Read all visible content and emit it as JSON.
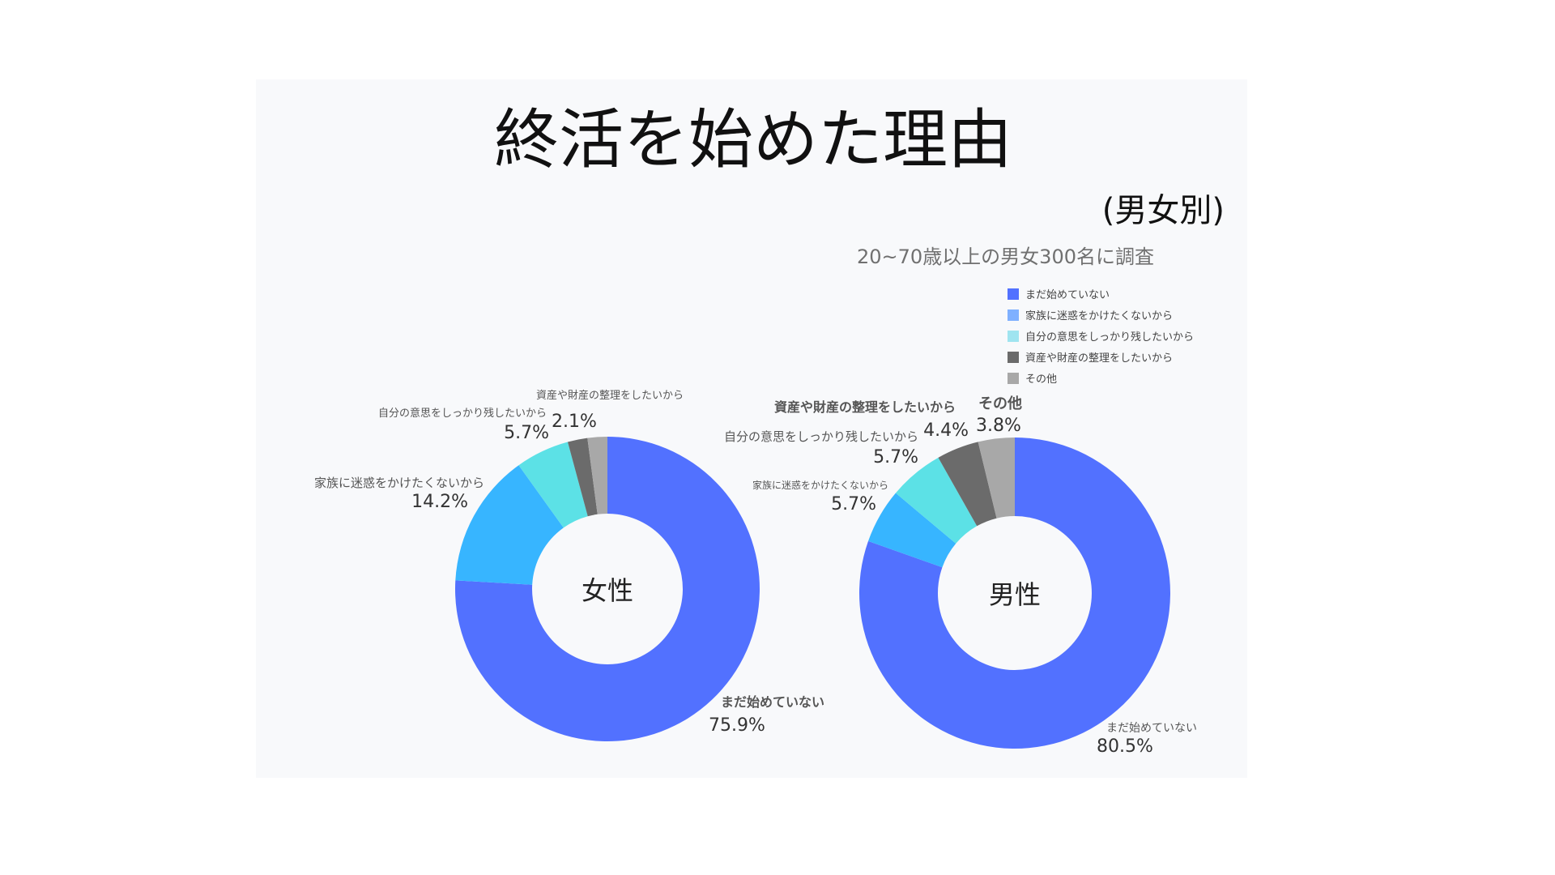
{
  "chart_data": {
    "type": "pie",
    "title": "終活を始めた理由",
    "subtitle": "(男女別)",
    "note": "20~70歳以上の男女300名に調査",
    "legend": {
      "placement": "top-right",
      "items": [
        {
          "label": "まだ始めていない",
          "color": "#5271ff"
        },
        {
          "label": "家族に迷惑をかけたくないから",
          "color": "#7fb0ff"
        },
        {
          "label": "自分の意思をしっかり残したいから",
          "color": "#9fe4f0"
        },
        {
          "label": "資産や財産の整理をしたいから",
          "color": "#6b6b6b"
        },
        {
          "label": "その他",
          "color": "#a8a8a8"
        }
      ]
    },
    "charts": [
      {
        "center_label": "女性",
        "slices": [
          {
            "label": "まだ始めていない",
            "value": 75.9,
            "display": "75.9%",
            "color": "#5271ff"
          },
          {
            "label": "家族に迷惑をかけたくないから",
            "value": 14.2,
            "display": "14.2%",
            "color": "#37b5ff"
          },
          {
            "label": "自分の意思をしっかり残したいから",
            "value": 5.7,
            "display": "5.7%",
            "color": "#5ce1e6"
          },
          {
            "label": "資産や財産の整理をしたいから",
            "value": 2.1,
            "display": "2.1%",
            "color": "#6b6b6b"
          },
          {
            "label": "",
            "value": 2.1,
            "display": "",
            "color": "#a8a8a8"
          }
        ]
      },
      {
        "center_label": "男性",
        "slices": [
          {
            "label": "まだ始めていない",
            "value": 80.5,
            "display": "80.5%",
            "color": "#5271ff"
          },
          {
            "label": "家族に迷惑をかけたくないから",
            "value": 5.7,
            "display": "5.7%",
            "color": "#37b5ff"
          },
          {
            "label": "自分の意思をしっかり残したいから",
            "value": 5.7,
            "display": "5.7%",
            "color": "#5ce1e6"
          },
          {
            "label": "資産や財産の整理をしたいから",
            "value": 4.4,
            "display": "4.4%",
            "color": "#6b6b6b"
          },
          {
            "label": "その他",
            "value": 3.8,
            "display": "3.8%",
            "color": "#a8a8a8"
          }
        ]
      }
    ]
  }
}
